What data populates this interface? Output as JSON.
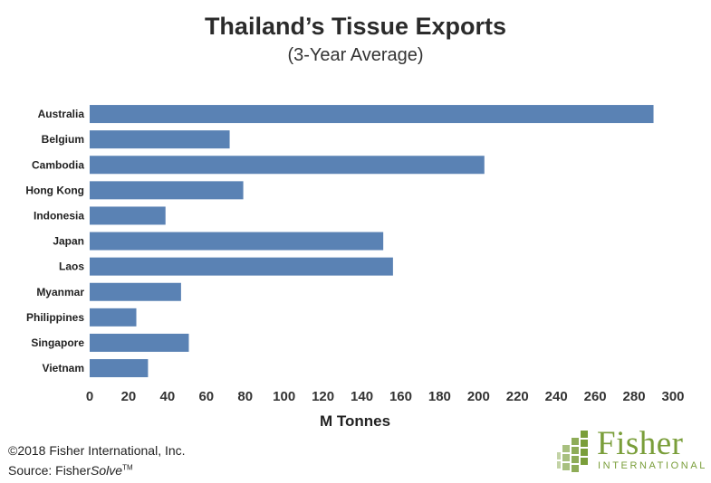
{
  "chart_data": {
    "type": "bar",
    "orientation": "horizontal",
    "title": "Thailand’s Tissue Exports",
    "subtitle": "(3-Year Average)",
    "xlabel": "M Tonnes",
    "ylabel": "",
    "categories": [
      "Australia",
      "Belgium",
      "Cambodia",
      "Hong Kong",
      "Indonesia",
      "Japan",
      "Laos",
      "Myanmar",
      "Philippines",
      "Singapore",
      "Vietnam"
    ],
    "values": [
      290,
      72,
      203,
      79,
      39,
      151,
      156,
      47,
      24,
      51,
      30
    ],
    "xlim": [
      0,
      300
    ],
    "xticks": [
      0,
      20,
      40,
      60,
      80,
      100,
      120,
      140,
      160,
      180,
      200,
      220,
      240,
      260,
      280,
      300
    ],
    "grid": false,
    "bar_color": "#5a82b4"
  },
  "footer": {
    "copyright": "©2018 Fisher International, Inc.",
    "source_prefix": "Source: Fisher",
    "source_italic": "Solve",
    "source_tm": "TM"
  },
  "logo": {
    "word": "Fisher",
    "sub": "INTERNATIONAL",
    "color": "#7a9e3a",
    "icon": "fisher-grid-logo-icon"
  }
}
